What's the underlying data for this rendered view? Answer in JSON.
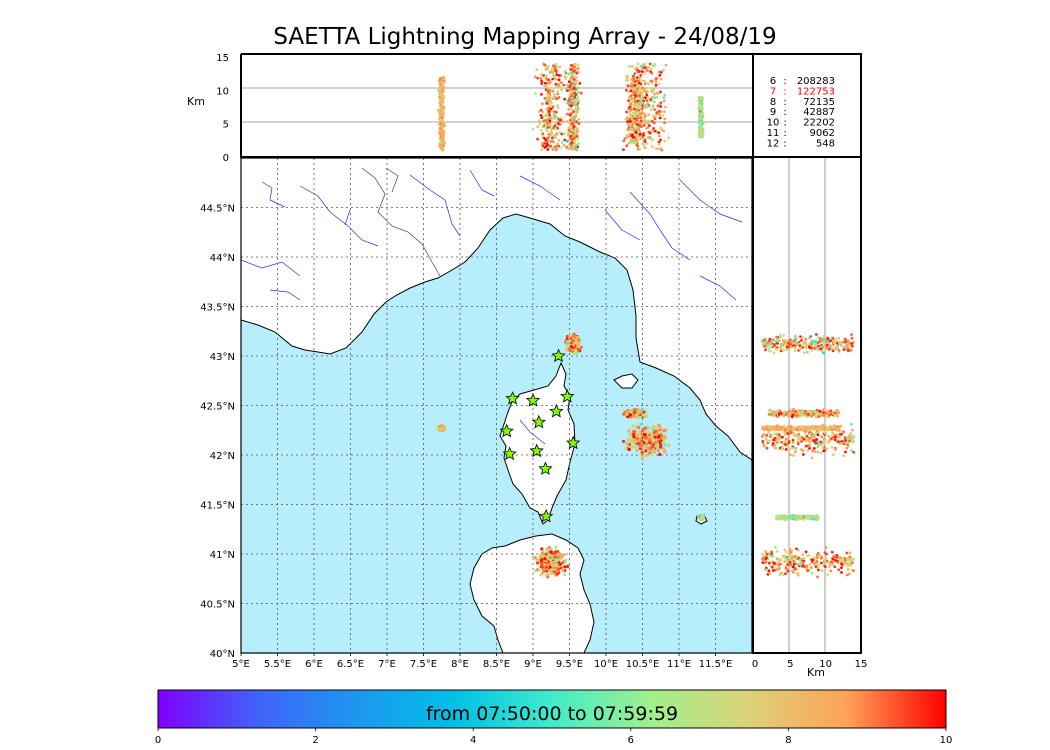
{
  "title": "SAETTA Lightning Mapping Array - 24/08/19",
  "chart_data": {
    "type": "scatter",
    "title": "SAETTA Lightning Mapping Array - 24/08/19",
    "map": {
      "xlim": [
        5.0,
        12.0
      ],
      "ylim": [
        40.0,
        45.0
      ],
      "x_ticks": [
        "5°E",
        "5.5°E",
        "6°E",
        "6.5°E",
        "7°E",
        "7.5°E",
        "8°E",
        "8.5°E",
        "9°E",
        "9.5°E",
        "10°E",
        "10.5°E",
        "11°E",
        "11.5°E"
      ],
      "y_ticks": [
        "40°N",
        "40.5°N",
        "41°N",
        "41.5°N",
        "42°N",
        "42.5°N",
        "43°N",
        "43.5°N",
        "44°N",
        "44.5°N"
      ],
      "grid": true,
      "colors": {
        "sea": "#b7eefb",
        "coast": "#000000",
        "rivers": "#2a2aff",
        "borders": "#000000"
      }
    },
    "altitude_panel_top": {
      "ylabel": "Km",
      "ylim": [
        0,
        15
      ],
      "y_ticks": [
        "0",
        "5",
        "10",
        "15"
      ]
    },
    "altitude_panel_right": {
      "xlabel": "Km",
      "xlim": [
        0,
        15
      ],
      "x_ticks": [
        "0",
        "5",
        "10",
        "15"
      ]
    },
    "station_counts": [
      {
        "stations": "6",
        "count": "208283",
        "color": "#000000"
      },
      {
        "stations": "7",
        "count": "122753",
        "color": "#ff0000"
      },
      {
        "stations": "8",
        "count": "72135",
        "color": "#000000"
      },
      {
        "stations": "9",
        "count": "42887",
        "color": "#000000"
      },
      {
        "stations": "10",
        "count": "22202",
        "color": "#000000"
      },
      {
        "stations": "11",
        "count": "9062",
        "color": "#000000"
      },
      {
        "stations": "12",
        "count": "548",
        "color": "#000000"
      }
    ],
    "lma_stations": [
      {
        "lon": 9.35,
        "lat": 43.0
      },
      {
        "lon": 8.72,
        "lat": 42.57
      },
      {
        "lon": 9.0,
        "lat": 42.55
      },
      {
        "lon": 9.47,
        "lat": 42.59
      },
      {
        "lon": 9.32,
        "lat": 42.44
      },
      {
        "lon": 9.08,
        "lat": 42.33
      },
      {
        "lon": 8.64,
        "lat": 42.24
      },
      {
        "lon": 9.55,
        "lat": 42.12
      },
      {
        "lon": 8.68,
        "lat": 42.01
      },
      {
        "lon": 9.05,
        "lat": 42.04
      },
      {
        "lon": 9.17,
        "lat": 41.86
      },
      {
        "lon": 9.18,
        "lat": 41.38
      }
    ],
    "storm_clusters": [
      {
        "lon": 9.55,
        "lat": 43.12,
        "lon_spread": 0.12,
        "lat_spread": 0.12,
        "z_min": 1,
        "z_max": 14,
        "time_min": 4,
        "time_max": 10
      },
      {
        "lon": 10.55,
        "lat": 42.15,
        "lon_spread": 0.38,
        "lat_spread": 0.2,
        "z_min": 1,
        "z_max": 14,
        "time_min": 5,
        "time_max": 10
      },
      {
        "lon": 9.25,
        "lat": 40.92,
        "lon_spread": 0.28,
        "lat_spread": 0.18,
        "z_min": 1,
        "z_max": 14,
        "time_min": 5,
        "time_max": 10
      },
      {
        "lon": 7.75,
        "lat": 42.27,
        "lon_spread": 0.05,
        "lat_spread": 0.03,
        "z_min": 1,
        "z_max": 12,
        "time_min": 7,
        "time_max": 9
      },
      {
        "lon": 11.3,
        "lat": 41.37,
        "lon_spread": 0.04,
        "lat_spread": 0.03,
        "z_min": 3,
        "z_max": 9,
        "time_min": 4,
        "time_max": 8
      },
      {
        "lon": 10.4,
        "lat": 42.42,
        "lon_spread": 0.18,
        "lat_spread": 0.05,
        "z_min": 2,
        "z_max": 12,
        "time_min": 5,
        "time_max": 10
      }
    ],
    "colorbar": {
      "label": "from 07:50:00 to 07:59:59",
      "range": [
        0,
        10
      ],
      "ticks": [
        "0",
        "2",
        "4",
        "6",
        "8",
        "10"
      ]
    }
  }
}
